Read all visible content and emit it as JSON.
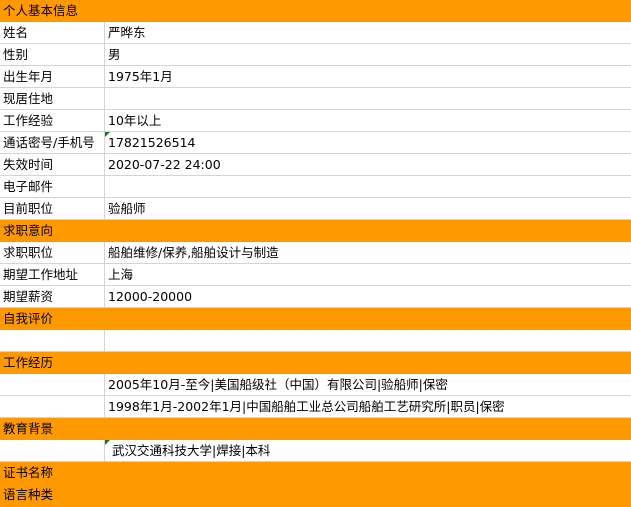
{
  "sections": {
    "basic": "个人基本信息",
    "intent": "求职意向",
    "self_eval": "自我评价",
    "work": "工作经历",
    "education": "教育背景",
    "certificate": "证书名称",
    "language": "语言种类"
  },
  "basic": [
    {
      "label": "姓名",
      "value": "严晔东"
    },
    {
      "label": "性别",
      "value": "男"
    },
    {
      "label": "出生年月",
      "value": "1975年1月"
    },
    {
      "label": "现居住地",
      "value": ""
    },
    {
      "label": "工作经验",
      "value": "10年以上"
    },
    {
      "label": "通话密号/手机号",
      "value": "17821526514"
    },
    {
      "label": "失效时间",
      "value": "2020-07-22 24:00"
    },
    {
      "label": "电子邮件",
      "value": ""
    },
    {
      "label": "目前职位",
      "value": "验船师"
    }
  ],
  "intent": [
    {
      "label": "求职职位",
      "value": "船舶维修/保养,船舶设计与制造"
    },
    {
      "label": "期望工作地址",
      "value": "上海"
    },
    {
      "label": "期望薪资",
      "value": "12000-20000"
    }
  ],
  "work": [
    "2005年10月-至今|美国船级社（中国）有限公司|验船师|保密",
    "1998年1月-2002年1月|中国船舶工业总公司船舶工艺研究所|职员|保密"
  ],
  "education": [
    "武汉交通科技大学|焊接|本科"
  ],
  "colors": {
    "section_bg": "#FF9900",
    "grid": "#D4D4D4",
    "comment_marker": "#1A7A1A"
  }
}
